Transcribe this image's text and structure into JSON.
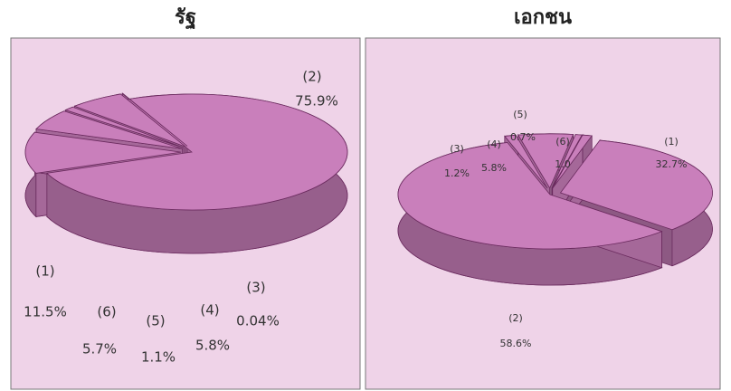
{
  "chart_data": [
    {
      "type": "pie3d",
      "title": "รัฐ",
      "categories": [
        "(1)",
        "(2)",
        "(3)",
        "(4)",
        "(5)",
        "(6)"
      ],
      "values": [
        11.5,
        75.9,
        0.04,
        5.8,
        1.1,
        5.7
      ],
      "value_labels": [
        "11.5%",
        "75.9%",
        "0.04%",
        "5.8%",
        "1.1%",
        "5.7%"
      ],
      "color": "#c97fbb"
    },
    {
      "type": "pie3d",
      "title": "เอกชน",
      "categories": [
        "(1)",
        "(2)",
        "(3)",
        "(4)",
        "(5)",
        "(6)"
      ],
      "values": [
        32.7,
        58.6,
        1.2,
        5.8,
        0.7,
        1.0
      ],
      "value_labels": [
        "32.7%",
        "58.6%",
        "1.2%",
        "5.8%",
        "0.7%",
        "1.0"
      ],
      "color": "#c97fbb"
    }
  ]
}
